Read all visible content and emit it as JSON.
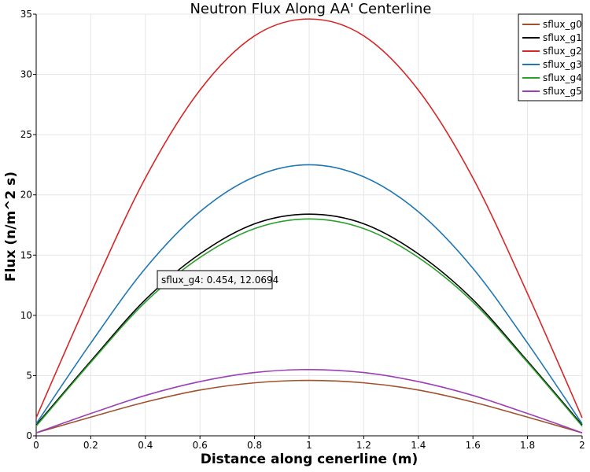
{
  "chart_data": {
    "type": "line",
    "title": "Neutron Flux Along AA' Centerline",
    "xlabel": "Distance along cenerline (m)",
    "ylabel": "Flux (n/m^2 s)",
    "xlim": [
      0,
      2
    ],
    "ylim": [
      0,
      35
    ],
    "xticks": [
      "0",
      "0.2",
      "0.4",
      "0.6",
      "0.8",
      "1",
      "1.2",
      "1.4",
      "1.6",
      "1.8",
      "2"
    ],
    "yticks": [
      "0",
      "5",
      "10",
      "15",
      "20",
      "25",
      "30",
      "35"
    ],
    "grid": true,
    "legend_position": "top-right",
    "series": [
      {
        "name": "sflux_g0",
        "color": "#a0522d",
        "x": [
          0,
          0.2,
          0.4,
          0.6,
          0.8,
          1.0,
          1.2,
          1.4,
          1.6,
          1.8,
          2.0
        ],
        "values": [
          0.25,
          1.55,
          2.8,
          3.8,
          4.4,
          4.6,
          4.4,
          3.8,
          2.8,
          1.55,
          0.25
        ]
      },
      {
        "name": "sflux_g1",
        "color": "#000000",
        "x": [
          0,
          0.2,
          0.4,
          0.6,
          0.8,
          1.0,
          1.2,
          1.4,
          1.6,
          1.8,
          2.0
        ],
        "values": [
          0.9,
          6.2,
          11.3,
          15.1,
          17.6,
          18.4,
          17.6,
          15.1,
          11.3,
          6.2,
          0.9
        ]
      },
      {
        "name": "sflux_g2",
        "color": "#d62728",
        "x": [
          0,
          0.2,
          0.4,
          0.6,
          0.8,
          1.0,
          1.2,
          1.4,
          1.6,
          1.8,
          2.0
        ],
        "values": [
          1.5,
          11.8,
          21.4,
          28.7,
          33.2,
          34.6,
          33.2,
          28.7,
          21.4,
          11.8,
          1.5
        ]
      },
      {
        "name": "sflux_g3",
        "color": "#1f77b4",
        "x": [
          0,
          0.2,
          0.4,
          0.6,
          0.8,
          1.0,
          1.2,
          1.4,
          1.6,
          1.8,
          2.0
        ],
        "values": [
          1.0,
          7.7,
          13.9,
          18.6,
          21.5,
          22.5,
          21.5,
          18.6,
          13.9,
          7.7,
          1.0
        ]
      },
      {
        "name": "sflux_g4",
        "color": "#2ca02c",
        "x": [
          0,
          0.2,
          0.4,
          0.6,
          0.8,
          1.0,
          1.2,
          1.4,
          1.6,
          1.8,
          2.0
        ],
        "values": [
          0.8,
          6.1,
          11.1,
          14.8,
          17.2,
          18.0,
          17.2,
          14.8,
          11.1,
          6.1,
          0.8
        ]
      },
      {
        "name": "sflux_g5",
        "color": "#9b3fb5",
        "x": [
          0,
          0.2,
          0.4,
          0.6,
          0.8,
          1.0,
          1.2,
          1.4,
          1.6,
          1.8,
          2.0
        ],
        "values": [
          0.25,
          1.85,
          3.35,
          4.5,
          5.25,
          5.5,
          5.25,
          4.5,
          3.35,
          1.85,
          0.25
        ]
      }
    ],
    "annotation": {
      "text": "sflux_g4: 0.454,  12.0694",
      "x": 0.454,
      "y": 12.0694
    }
  }
}
